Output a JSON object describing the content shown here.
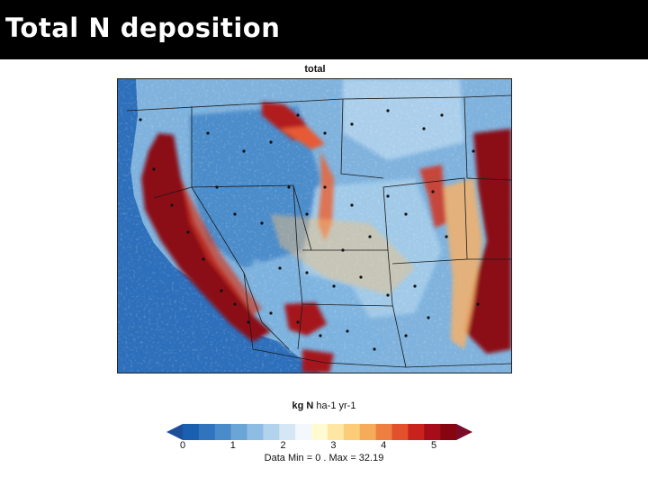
{
  "slide": {
    "title": "Total N deposition"
  },
  "map": {
    "panel_title": "total",
    "units_bold": "kg N",
    "units_rest": " ha-1 yr-1",
    "colorbar": {
      "ticks": [
        "0",
        "1",
        "2",
        "3",
        "4",
        "5"
      ],
      "min": 0,
      "max": 5,
      "colors": [
        "#1a5fb0",
        "#2f74bd",
        "#4a8cc9",
        "#6aa5d6",
        "#8dbde2",
        "#b2d3ec",
        "#d5e7f5",
        "#f2f8fd",
        "#fffad2",
        "#fde7a2",
        "#fbcd78",
        "#f6ab5a",
        "#ef7f40",
        "#e2512c",
        "#c8221d",
        "#a50d18",
        "#860510"
      ],
      "under_color": "#1c4f99",
      "over_color": "#7a0b2a"
    },
    "stats": "Data Min =  0 . Max =  32.19",
    "region": "Western United States"
  }
}
